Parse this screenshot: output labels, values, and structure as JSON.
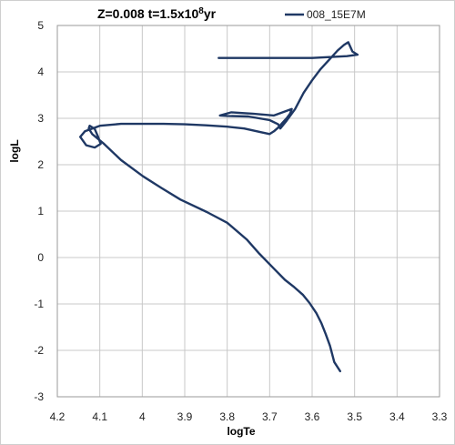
{
  "chart_data": {
    "type": "line",
    "title": "Z=0.008 t=1.5x10",
    "title_sup": "8",
    "title_suffix": "yr",
    "xlabel": "logTe",
    "ylabel": "logL",
    "xlim": [
      4.2,
      3.3
    ],
    "ylim": [
      -3,
      5
    ],
    "x_reversed": true,
    "xticks": [
      "4.2",
      "4.1",
      "4",
      "3.9",
      "3.8",
      "3.7",
      "3.6",
      "3.5",
      "3.4",
      "3.3"
    ],
    "yticks": [
      "5",
      "4",
      "3",
      "2",
      "1",
      "0",
      "-1",
      "-2",
      "-3"
    ],
    "grid": true,
    "legend": "top-right",
    "line_color": "#1f3864",
    "series": [
      {
        "name": "008_15E7M",
        "x": [
          3.534,
          3.548,
          3.558,
          3.568,
          3.578,
          3.59,
          3.606,
          3.622,
          3.642,
          3.664,
          3.69,
          3.724,
          3.754,
          3.8,
          3.848,
          3.91,
          3.955,
          3.998,
          4.05,
          4.09,
          4.118,
          4.126,
          4.124,
          4.112,
          4.104,
          4.098,
          4.112,
          4.132,
          4.146,
          4.135,
          4.1,
          4.05,
          4.0,
          3.95,
          3.9,
          3.85,
          3.8,
          3.76,
          3.72,
          3.7,
          3.69,
          3.68,
          3.67,
          3.66,
          3.652,
          3.648,
          3.69,
          3.74,
          3.79,
          3.817,
          3.8,
          3.75,
          3.7,
          3.68,
          3.675,
          3.66,
          3.64,
          3.62,
          3.6,
          3.58,
          3.56,
          3.54,
          3.525,
          3.515,
          3.505,
          3.493,
          3.518,
          3.6,
          3.7,
          3.82
        ],
        "y": [
          -2.45,
          -2.25,
          -1.9,
          -1.65,
          -1.42,
          -1.2,
          -0.98,
          -0.8,
          -0.64,
          -0.48,
          -0.24,
          0.08,
          0.39,
          0.75,
          0.98,
          1.25,
          1.5,
          1.75,
          2.1,
          2.45,
          2.66,
          2.78,
          2.84,
          2.77,
          2.6,
          2.45,
          2.37,
          2.42,
          2.6,
          2.72,
          2.84,
          2.88,
          2.88,
          2.88,
          2.87,
          2.85,
          2.82,
          2.78,
          2.7,
          2.66,
          2.72,
          2.8,
          2.9,
          3.0,
          3.1,
          3.2,
          3.06,
          3.1,
          3.13,
          3.06,
          3.05,
          3.04,
          2.96,
          2.87,
          2.78,
          2.95,
          3.2,
          3.55,
          3.82,
          4.06,
          4.26,
          4.46,
          4.58,
          4.64,
          4.44,
          4.37,
          4.34,
          4.3,
          4.3,
          4.3
        ]
      }
    ]
  }
}
